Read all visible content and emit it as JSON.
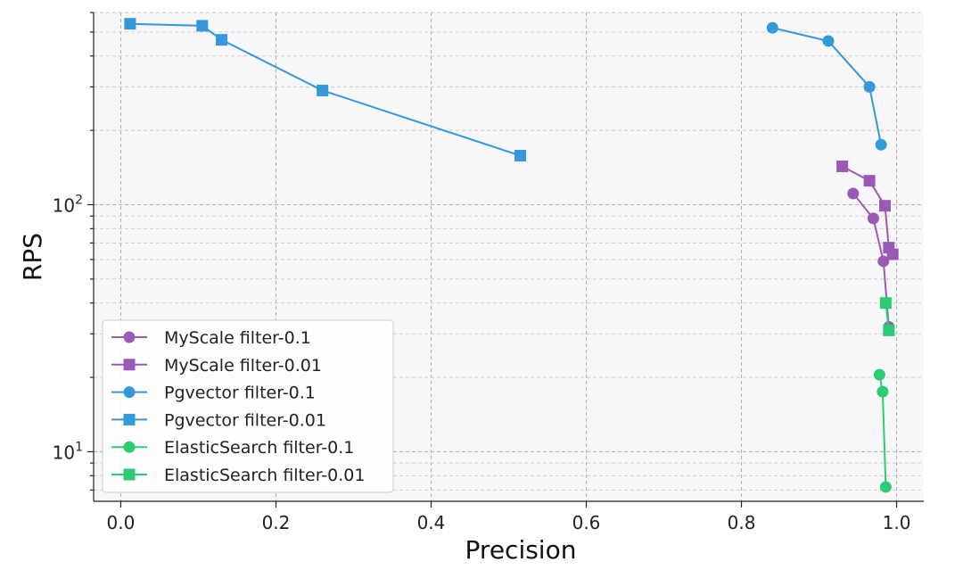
{
  "chart_data": {
    "type": "line",
    "xlabel": "Precision",
    "ylabel": "RPS",
    "xlim": [
      -0.035,
      1.035
    ],
    "ylim": [
      6.3,
      600
    ],
    "yscale": "log",
    "xticks": [
      0.0,
      0.2,
      0.4,
      0.6,
      0.8,
      1.0
    ],
    "xtick_labels": [
      "0.0",
      "0.2",
      "0.4",
      "0.6",
      "0.8",
      "1.0"
    ],
    "yticks_major": [
      10,
      100
    ],
    "ytick_labels": [
      {
        "base": "10",
        "exp": "1"
      },
      {
        "base": "10",
        "exp": "2"
      }
    ],
    "grid": "both",
    "legend_position": "lower-left",
    "series": [
      {
        "name": "MyScale filter-0.1",
        "color": "#9b59b6",
        "marker": "circle",
        "points": [
          [
            0.944,
            111
          ],
          [
            0.97,
            88
          ],
          [
            0.983,
            59
          ],
          [
            0.99,
            32
          ]
        ]
      },
      {
        "name": "MyScale filter-0.01",
        "color": "#9b59b6",
        "marker": "square",
        "points": [
          [
            0.93,
            143
          ],
          [
            0.965,
            125
          ],
          [
            0.985,
            99
          ],
          [
            0.99,
            67
          ],
          [
            0.995,
            63
          ]
        ]
      },
      {
        "name": "Pgvector filter-0.1",
        "color": "#3498db",
        "marker": "circle",
        "points": [
          [
            0.84,
            520
          ],
          [
            0.912,
            460
          ],
          [
            0.965,
            300
          ],
          [
            0.98,
            175
          ]
        ]
      },
      {
        "name": "Pgvector filter-0.01",
        "color": "#3498db",
        "marker": "square",
        "points": [
          [
            0.515,
            158
          ],
          [
            0.26,
            290
          ],
          [
            0.13,
            465
          ],
          [
            0.105,
            530
          ],
          [
            0.012,
            540
          ]
        ]
      },
      {
        "name": "ElasticSearch filter-0.1",
        "color": "#2ecc71",
        "marker": "circle",
        "points": [
          [
            0.978,
            20.5
          ],
          [
            0.982,
            17.5
          ],
          [
            0.986,
            7.2
          ]
        ]
      },
      {
        "name": "ElasticSearch filter-0.01",
        "color": "#2ecc71",
        "marker": "square",
        "points": [
          [
            0.986,
            40
          ],
          [
            0.99,
            31
          ]
        ]
      }
    ]
  }
}
